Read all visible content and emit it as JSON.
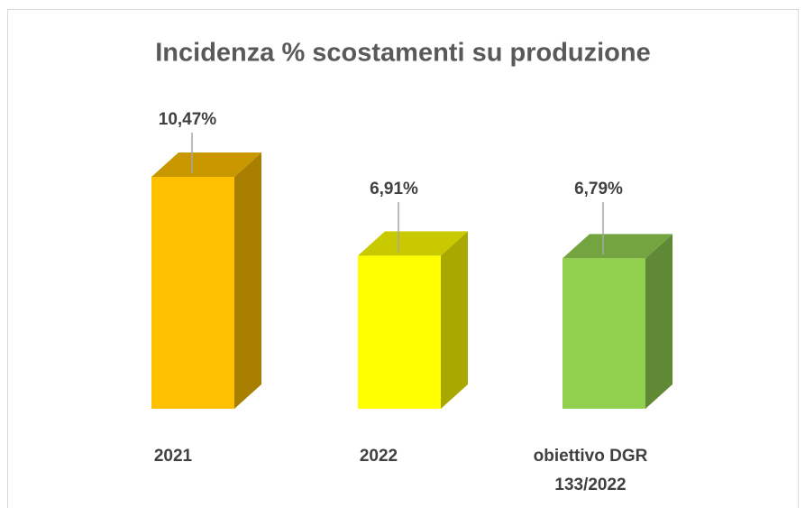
{
  "chart_data": {
    "type": "bar3d",
    "title": "Incidenza % scostamenti su produzione",
    "categories": [
      "2021",
      "2022",
      "obiettivo DGR 133/2022"
    ],
    "values": [
      10.47,
      6.91,
      6.79
    ],
    "value_labels": [
      "10,47%",
      "6,91%",
      "6,79%"
    ],
    "colors": [
      "#ffc000",
      "#ffff00",
      "#92d050"
    ]
  }
}
